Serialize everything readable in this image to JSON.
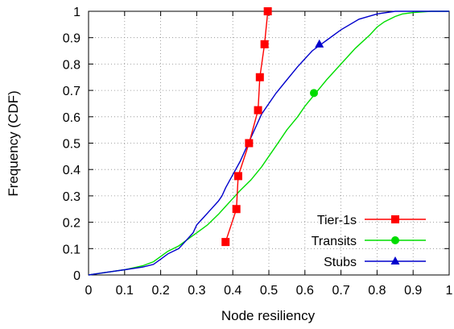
{
  "chart_data": {
    "type": "line",
    "xlabel": "Node resiliency",
    "ylabel": "Frequency (CDF)",
    "xlim": [
      0,
      1
    ],
    "ylim": [
      0,
      1
    ],
    "x_ticks": [
      "0",
      "0.1",
      "0.2",
      "0.3",
      "0.4",
      "0.5",
      "0.6",
      "0.7",
      "0.8",
      "0.9",
      "1"
    ],
    "y_ticks": [
      "0",
      "0.1",
      "0.2",
      "0.3",
      "0.4",
      "0.5",
      "0.6",
      "0.7",
      "0.8",
      "0.9",
      "1"
    ],
    "grid": true,
    "legend_position": "bottom-right",
    "series": [
      {
        "name": "Tier-1s",
        "color": "#ff0000",
        "marker": "square",
        "x": [
          0.38,
          0.41,
          0.415,
          0.445,
          0.47,
          0.475,
          0.488,
          0.497
        ],
        "y": [
          0.125,
          0.25,
          0.375,
          0.5,
          0.625,
          0.75,
          0.875,
          1.0
        ],
        "marker_x": [
          0.38,
          0.41,
          0.415,
          0.445,
          0.47,
          0.475,
          0.488,
          0.497
        ],
        "marker_y": [
          0.125,
          0.25,
          0.375,
          0.5,
          0.625,
          0.75,
          0.875,
          1.0
        ]
      },
      {
        "name": "Transits",
        "color": "#00dd00",
        "marker": "circle",
        "x": [
          0.0,
          0.05,
          0.1,
          0.15,
          0.18,
          0.2,
          0.22,
          0.25,
          0.28,
          0.3,
          0.33,
          0.36,
          0.38,
          0.4,
          0.42,
          0.45,
          0.48,
          0.5,
          0.52,
          0.55,
          0.58,
          0.6,
          0.63,
          0.66,
          0.7,
          0.74,
          0.78,
          0.8,
          0.82,
          0.85,
          0.87,
          0.9,
          0.95,
          1.0
        ],
        "y": [
          0.0,
          0.01,
          0.02,
          0.035,
          0.05,
          0.07,
          0.09,
          0.11,
          0.14,
          0.16,
          0.19,
          0.23,
          0.26,
          0.29,
          0.32,
          0.36,
          0.41,
          0.45,
          0.49,
          0.55,
          0.6,
          0.64,
          0.69,
          0.74,
          0.8,
          0.86,
          0.91,
          0.94,
          0.96,
          0.98,
          0.99,
          0.995,
          1.0,
          1.0
        ],
        "marker_x": [
          0.625
        ],
        "marker_y": [
          0.69
        ]
      },
      {
        "name": "Stubs",
        "color": "#0000cc",
        "marker": "triangle",
        "x": [
          0.0,
          0.05,
          0.1,
          0.15,
          0.18,
          0.2,
          0.22,
          0.25,
          0.27,
          0.29,
          0.3,
          0.32,
          0.34,
          0.36,
          0.37,
          0.38,
          0.4,
          0.42,
          0.44,
          0.46,
          0.48,
          0.5,
          0.52,
          0.55,
          0.58,
          0.6,
          0.62,
          0.64,
          0.66,
          0.7,
          0.75,
          0.8,
          0.85,
          0.9,
          1.0
        ],
        "y": [
          0.0,
          0.01,
          0.02,
          0.03,
          0.04,
          0.06,
          0.08,
          0.1,
          0.13,
          0.16,
          0.19,
          0.22,
          0.25,
          0.28,
          0.3,
          0.33,
          0.38,
          0.43,
          0.49,
          0.55,
          0.61,
          0.65,
          0.69,
          0.74,
          0.79,
          0.82,
          0.85,
          0.87,
          0.89,
          0.93,
          0.97,
          0.99,
          1.0,
          1.0,
          1.0
        ],
        "marker_x": [
          0.64
        ],
        "marker_y": [
          0.875
        ]
      }
    ]
  }
}
